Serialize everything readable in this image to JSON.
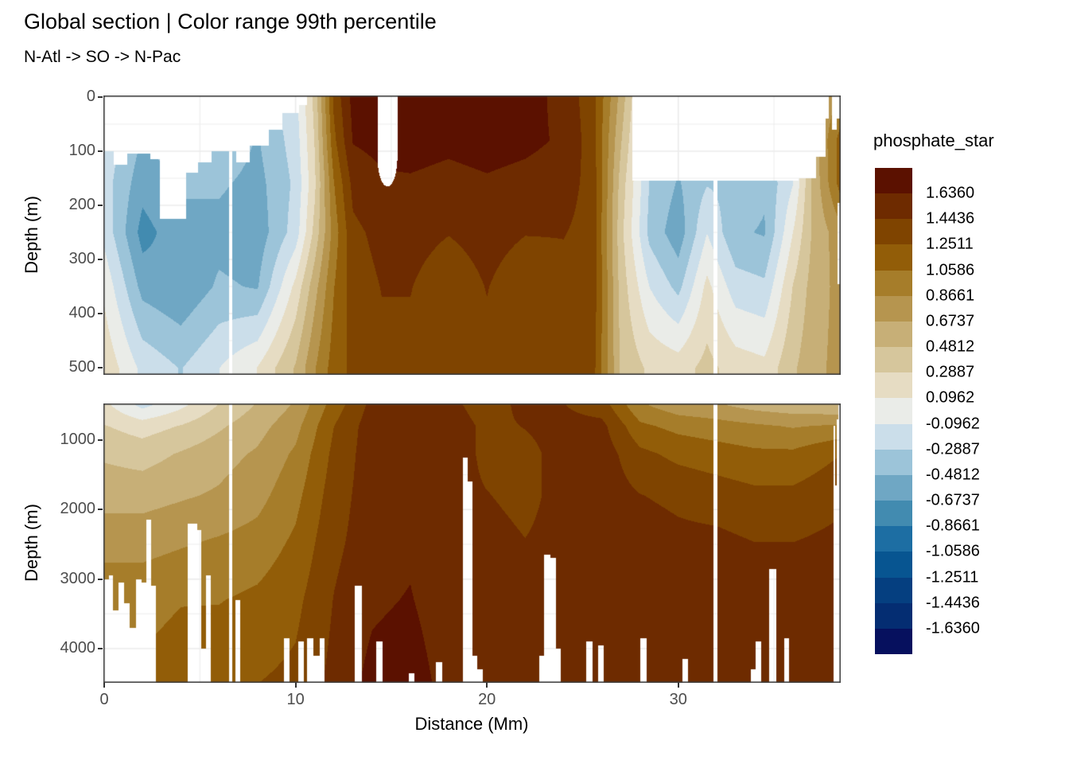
{
  "title": "Global section | Color range 99th percentile",
  "subtitle": "N-Atl -> SO -> N-Pac",
  "legend": {
    "title": "phosphate_star",
    "labels": [
      "1.6360",
      "1.4436",
      "1.2511",
      "1.0586",
      "0.8661",
      "0.6737",
      "0.4812",
      "0.2887",
      "0.0962",
      "-0.0962",
      "-0.2887",
      "-0.4812",
      "-0.6737",
      "-0.8661",
      "-1.0586",
      "-1.2511",
      "-1.4436",
      "-1.6360"
    ]
  },
  "axes": {
    "x": {
      "title": "Distance (Mm)",
      "ticks": [
        "0",
        "10",
        "20",
        "30"
      ],
      "tick_values": [
        0,
        10,
        20,
        30
      ],
      "range": [
        0,
        38.5
      ]
    },
    "y_upper": {
      "title": "Depth (m)",
      "ticks": [
        "0",
        "100",
        "200",
        "300",
        "400",
        "500"
      ],
      "tick_values": [
        0,
        100,
        200,
        300,
        400,
        500
      ],
      "range": [
        0,
        500
      ]
    },
    "y_lower": {
      "title": "Depth (m)",
      "ticks": [
        "1000",
        "2000",
        "3000",
        "4000"
      ],
      "tick_values": [
        1000,
        2000,
        3000,
        4000
      ],
      "range": [
        500,
        4500
      ]
    }
  },
  "chart_data": {
    "type": "filled-contour-section",
    "variable": "phosphate_star",
    "section_path": "N-Atl -> SO -> N-Pac",
    "x_unit": "Mm",
    "depth_unit": "m",
    "x_range": [
      0,
      38.5
    ],
    "breaks": [
      -1.636,
      -1.4436,
      -1.2511,
      -1.0586,
      -0.8661,
      -0.6737,
      -0.4812,
      -0.2887,
      -0.0962,
      0.0962,
      0.2887,
      0.4812,
      0.6737,
      0.8661,
      1.0586,
      1.2511,
      1.4436,
      1.636
    ],
    "palette_neg_to_pos": [
      "#06105e",
      "#042d72",
      "#053f80",
      "#075591",
      "#1d6ea3",
      "#428bb0",
      "#6fa7c4",
      "#9cc4d9",
      "#cbdeea",
      "#eaece8",
      "#e6dcc3",
      "#d6c69c",
      "#c7af77",
      "#b6954f",
      "#a67d2a",
      "#925d08",
      "#7f4400",
      "#6e2b00",
      "#5b1100"
    ],
    "panel_upper": {
      "depth_range": [
        0,
        500
      ],
      "x": [
        0,
        2,
        4,
        6,
        8,
        10,
        11,
        12,
        13,
        14.5,
        16,
        18,
        20,
        22,
        24,
        25.5,
        27,
        28.5,
        30,
        31.5,
        33,
        34.5,
        36,
        37,
        38.5
      ],
      "depths": [
        0,
        80,
        160,
        250,
        350,
        500
      ],
      "values": [
        [
          -0.1,
          -0.15,
          -0.2,
          -0.15,
          0.05,
          0.25
        ],
        [
          -0.4,
          -0.5,
          -0.6,
          -0.75,
          -0.55,
          -0.15
        ],
        [
          -0.3,
          -0.35,
          -0.45,
          -0.55,
          -0.65,
          -0.3
        ],
        [
          -0.25,
          -0.3,
          -0.45,
          -0.55,
          -0.45,
          -0.1
        ],
        [
          -0.45,
          -0.5,
          -0.55,
          -0.6,
          -0.5,
          0.1
        ],
        [
          -0.15,
          -0.2,
          -0.25,
          -0.2,
          0.15,
          0.5
        ],
        [
          0.35,
          0.3,
          0.25,
          0.35,
          0.6,
          0.85
        ],
        [
          1.3,
          1.2,
          1.05,
          0.95,
          1.05,
          1.15
        ],
        [
          1.7,
          1.65,
          1.5,
          1.4,
          1.35,
          1.3
        ],
        [
          1.75,
          1.7,
          1.6,
          1.5,
          1.45,
          1.4
        ],
        [
          1.8,
          1.75,
          1.6,
          1.5,
          1.45,
          1.4
        ],
        [
          1.75,
          1.7,
          1.55,
          1.45,
          1.35,
          1.3
        ],
        [
          1.65,
          1.75,
          1.6,
          1.5,
          1.45,
          1.4
        ],
        [
          1.75,
          1.7,
          1.55,
          1.45,
          1.35,
          1.3
        ],
        [
          1.55,
          1.6,
          1.5,
          1.45,
          1.4,
          1.35
        ],
        [
          1.35,
          1.35,
          1.4,
          1.4,
          1.4,
          1.35
        ],
        [
          0.6,
          0.5,
          0.4,
          0.35,
          0.4,
          0.45
        ],
        [
          -0.2,
          -0.25,
          -0.3,
          -0.35,
          -0.1,
          0.25
        ],
        [
          -0.4,
          -0.45,
          -0.5,
          -0.6,
          -0.35,
          0.2
        ],
        [
          -0.2,
          -0.25,
          -0.3,
          -0.1,
          0.15,
          0.35
        ],
        [
          -0.3,
          -0.3,
          -0.35,
          -0.45,
          -0.2,
          0.2
        ],
        [
          -0.35,
          -0.4,
          -0.45,
          -0.5,
          -0.25,
          0.15
        ],
        [
          0.0,
          -0.05,
          -0.1,
          0.1,
          0.3,
          0.45
        ],
        [
          0.6,
          0.55,
          0.5,
          0.5,
          0.55,
          0.6
        ],
        [
          0.9,
          1.15,
          1.15,
          0.8,
          0.75,
          0.75
        ]
      ]
    },
    "panel_lower": {
      "depth_range": [
        500,
        4500
      ],
      "x": [
        0,
        2,
        4,
        6,
        8,
        10,
        12,
        14,
        16,
        18,
        20,
        22,
        24,
        26,
        28,
        30,
        32,
        34,
        36,
        38.5
      ],
      "depths": [
        500,
        800,
        1200,
        1800,
        2500,
        3300,
        4500
      ],
      "values": [
        [
          0.15,
          0.3,
          0.45,
          0.6,
          0.8,
          1.0,
          1.1
        ],
        [
          -0.15,
          0.2,
          0.4,
          0.6,
          0.8,
          1.0,
          1.1
        ],
        [
          0.05,
          0.3,
          0.5,
          0.65,
          0.85,
          1.05,
          1.15
        ],
        [
          0.3,
          0.45,
          0.6,
          0.7,
          0.9,
          1.05,
          1.2
        ],
        [
          0.5,
          0.6,
          0.7,
          0.8,
          0.95,
          1.1,
          1.25
        ],
        [
          0.7,
          0.8,
          0.9,
          1.0,
          1.1,
          1.2,
          1.3
        ],
        [
          1.15,
          1.25,
          1.3,
          1.35,
          1.4,
          1.45,
          1.5
        ],
        [
          1.5,
          1.55,
          1.55,
          1.55,
          1.55,
          1.6,
          1.7
        ],
        [
          1.55,
          1.6,
          1.6,
          1.6,
          1.6,
          1.65,
          1.75
        ],
        [
          1.5,
          1.55,
          1.55,
          1.5,
          1.5,
          1.5,
          1.55
        ],
        [
          1.35,
          1.4,
          1.4,
          1.45,
          1.5,
          1.5,
          1.5
        ],
        [
          1.5,
          1.45,
          1.4,
          1.4,
          1.45,
          1.5,
          1.5
        ],
        [
          1.45,
          1.5,
          1.5,
          1.5,
          1.5,
          1.5,
          1.5
        ],
        [
          1.35,
          1.5,
          1.55,
          1.55,
          1.55,
          1.5,
          1.5
        ],
        [
          0.9,
          1.1,
          1.3,
          1.45,
          1.55,
          1.55,
          1.5
        ],
        [
          0.75,
          1.0,
          1.2,
          1.4,
          1.5,
          1.55,
          1.5
        ],
        [
          0.7,
          0.95,
          1.15,
          1.35,
          1.5,
          1.5,
          1.5
        ],
        [
          0.6,
          0.9,
          1.1,
          1.3,
          1.45,
          1.5,
          1.5
        ],
        [
          0.55,
          0.85,
          1.1,
          1.3,
          1.45,
          1.5,
          1.5
        ],
        [
          0.5,
          0.9,
          1.25,
          1.4,
          1.5,
          1.5,
          1.5
        ]
      ]
    },
    "surface_mask_upper": [
      [
        0,
        100
      ],
      [
        0.5,
        125
      ],
      [
        1.2,
        105
      ],
      [
        2.4,
        115
      ],
      [
        2.9,
        225
      ],
      [
        4.3,
        140
      ],
      [
        4.9,
        120
      ],
      [
        5.6,
        100
      ],
      [
        6.9,
        120
      ],
      [
        7.6,
        90
      ],
      [
        8.6,
        60
      ],
      [
        9.3,
        30
      ],
      [
        10.2,
        15
      ],
      [
        10.6,
        0
      ],
      [
        27.6,
        155
      ],
      [
        36.3,
        150
      ],
      [
        37.2,
        110
      ],
      [
        37.7,
        40
      ],
      [
        37.85,
        0
      ],
      [
        38.05,
        60
      ],
      [
        38.3,
        40
      ]
    ],
    "seafloor_lower": [
      [
        0,
        3000
      ],
      [
        0.25,
        2950
      ],
      [
        0.45,
        3450
      ],
      [
        0.75,
        3050
      ],
      [
        1.05,
        3350
      ],
      [
        1.35,
        3700
      ],
      [
        1.65,
        3000
      ],
      [
        1.95,
        3050
      ],
      [
        2.2,
        2150
      ],
      [
        2.45,
        3100
      ],
      [
        2.7,
        4500
      ],
      [
        4.35,
        2200
      ],
      [
        4.85,
        2300
      ],
      [
        5.05,
        4000
      ],
      [
        5.3,
        2950
      ],
      [
        5.55,
        4500
      ],
      [
        6.85,
        3300
      ],
      [
        7.1,
        4500
      ],
      [
        9.4,
        3850
      ],
      [
        9.7,
        4500
      ],
      [
        10.15,
        3900
      ],
      [
        10.45,
        4500
      ],
      [
        10.6,
        3850
      ],
      [
        10.95,
        4100
      ],
      [
        11.25,
        3850
      ],
      [
        11.5,
        4500
      ],
      [
        13.1,
        3100
      ],
      [
        13.45,
        4500
      ],
      [
        14.2,
        3900
      ],
      [
        14.55,
        4500
      ],
      [
        15.9,
        4350
      ],
      [
        16.2,
        4500
      ],
      [
        17.35,
        4200
      ],
      [
        17.65,
        4500
      ],
      [
        18.75,
        1250
      ],
      [
        19.0,
        1600
      ],
      [
        19.25,
        4100
      ],
      [
        19.5,
        4300
      ],
      [
        19.8,
        4500
      ],
      [
        22.75,
        4100
      ],
      [
        23.0,
        2650
      ],
      [
        23.3,
        2700
      ],
      [
        23.6,
        4000
      ],
      [
        23.85,
        4500
      ],
      [
        25.2,
        3900
      ],
      [
        25.5,
        4500
      ],
      [
        25.8,
        3950
      ],
      [
        26.1,
        4500
      ],
      [
        28.0,
        3850
      ],
      [
        28.35,
        4500
      ],
      [
        30.2,
        4150
      ],
      [
        30.5,
        4500
      ],
      [
        33.8,
        4300
      ],
      [
        34.05,
        3900
      ],
      [
        34.35,
        4500
      ],
      [
        34.75,
        2850
      ],
      [
        35.1,
        4500
      ],
      [
        35.55,
        3850
      ],
      [
        35.8,
        4500
      ],
      [
        38.1,
        800
      ],
      [
        38.18,
        1650
      ],
      [
        38.28,
        700
      ],
      [
        38.35,
        500
      ]
    ],
    "gap_lines": [
      {
        "x": 6.6,
        "hw": 0.09
      },
      {
        "x": 31.95,
        "hw": 0.1
      }
    ],
    "holes_upper": [
      {
        "x0": 14.28,
        "x1": 15.32,
        "d0": 0,
        "d1": 165,
        "shape": "bulb"
      },
      {
        "x0": 38.33,
        "x1": 38.5,
        "d0": 195,
        "d1": 345,
        "shape": "rect"
      }
    ],
    "style": {
      "grid_color": "#ebebeb",
      "border_color": "#3f3f3f",
      "tick_color": "#333333",
      "tick_label_color": "#4d4d4d",
      "text_color": "#000000",
      "bg": "#ffffff"
    }
  }
}
